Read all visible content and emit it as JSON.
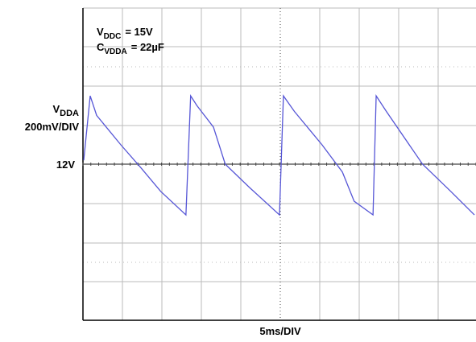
{
  "chart_data": {
    "type": "line",
    "annotations": [
      {
        "text": "V",
        "sub": "DDC",
        "suffix": "= 15V"
      },
      {
        "text": "C",
        "sub": "VDDA",
        "suffix": "= 22µF"
      }
    ],
    "ylabel": {
      "text": "V",
      "sub": "DDA",
      "scale": "200mV/DIV"
    },
    "xlabel": "5ms/DIV",
    "xlim": [
      0,
      50
    ],
    "ylim": [
      11.2,
      12.8
    ],
    "yticks": [
      {
        "value": 12,
        "label": "12V"
      }
    ],
    "x": [
      0.1,
      0.92,
      1.74,
      4.8,
      7.4,
      9.9,
      13.1,
      13.7,
      14.5,
      16.6,
      18.1,
      21.2,
      25.0,
      25.5,
      26.9,
      30.4,
      33.0,
      34.5,
      36.9,
      37.3,
      38.6,
      43.2,
      46.8,
      49.8
    ],
    "series": [
      {
        "color": "#5656d6",
        "values": [
          12.02,
          12.35,
          12.25,
          12.1,
          11.98,
          11.86,
          11.74,
          12.35,
          12.3,
          12.19,
          12.0,
          11.88,
          11.74,
          12.35,
          12.27,
          12.1,
          11.96,
          11.81,
          11.74,
          12.35,
          12.27,
          12.0,
          11.86,
          11.74
        ]
      }
    ]
  }
}
